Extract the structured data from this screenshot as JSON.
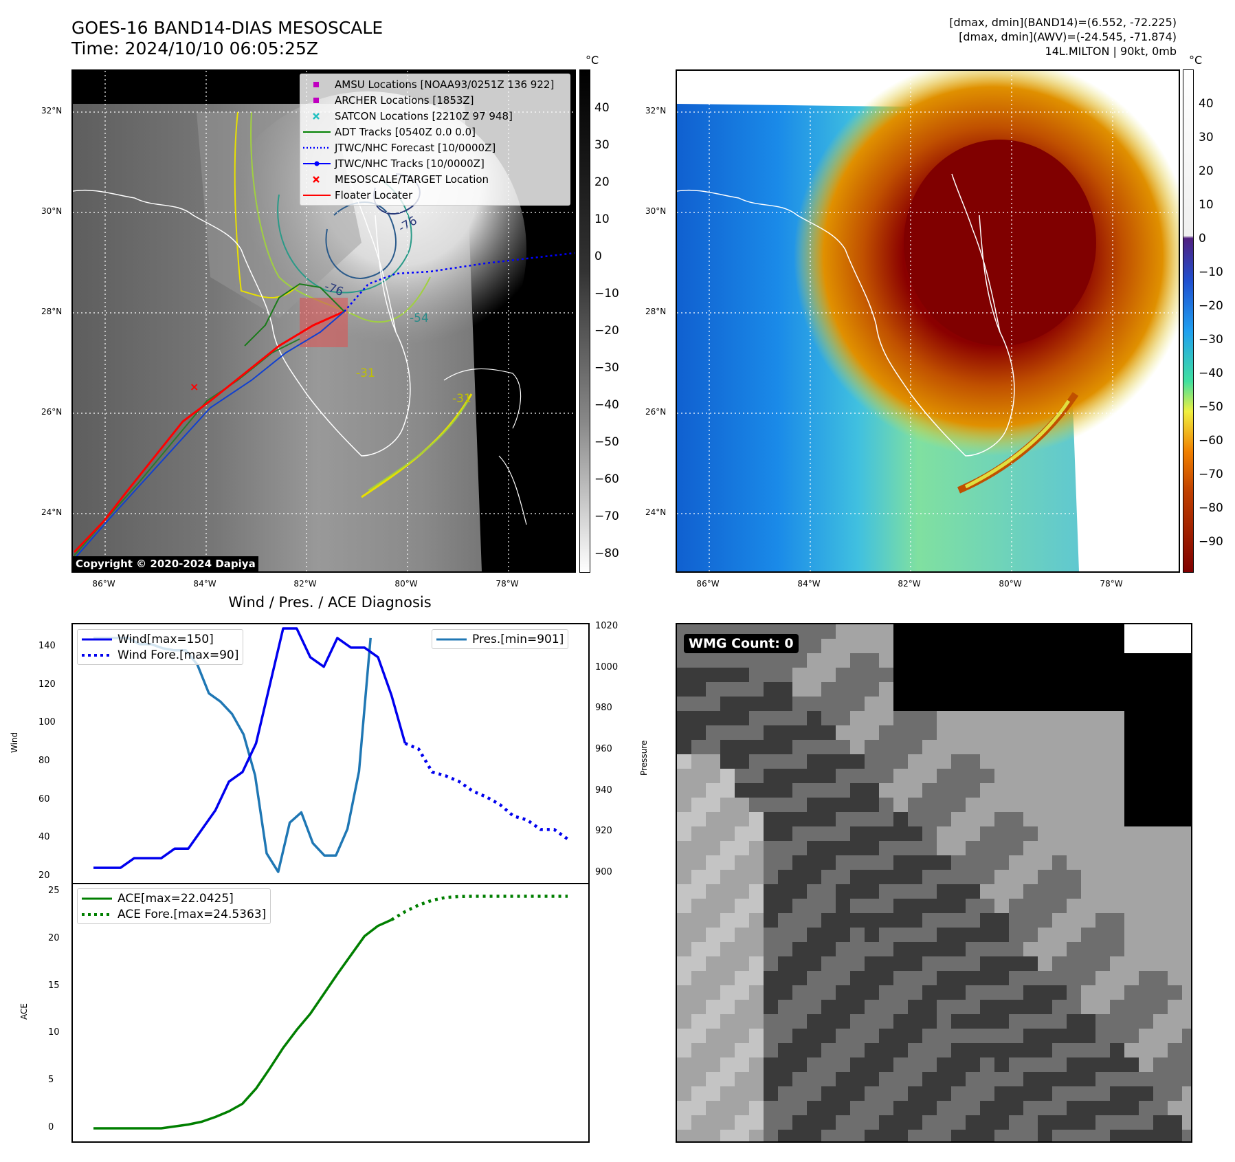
{
  "header": {
    "title_line1": "GOES-16 BAND14-DIAS MESOSCALE",
    "title_line2": "Time: 2024/10/10 06:05:25Z",
    "info_line1": "[dmax, dmin](BAND14)=(6.552, -72.225)",
    "info_line2": "[dmax, dmin](AWV)=(-24.545, -71.874)",
    "info_line3": "14L.MILTON | 90kt, 0mb"
  },
  "map": {
    "lat_labels": [
      "32°N",
      "30°N",
      "28°N",
      "26°N",
      "24°N"
    ],
    "lon_labels": [
      "86°W",
      "84°W",
      "82°W",
      "80°W",
      "78°W"
    ],
    "colorbar_unit": "°C",
    "bw_ticks": [
      "40",
      "30",
      "20",
      "10",
      "0",
      "−10",
      "−20",
      "−30",
      "−40",
      "−50",
      "−60",
      "−70",
      "−80"
    ],
    "color_ticks": [
      "40",
      "30",
      "20",
      "10",
      "0",
      "−10",
      "−20",
      "−30",
      "−40",
      "−50",
      "−60",
      "−70",
      "−80",
      "−90"
    ],
    "contour_labels": [
      "-76",
      "-76",
      "-54",
      "-31",
      "-31"
    ],
    "copyright": "Copyright © 2020-2024 Dapiya",
    "legend": [
      {
        "label": "AMSU Locations [NOAA93/0251Z 136 922]",
        "color": "#c000c0",
        "kind": "square"
      },
      {
        "label": "ARCHER Locations [1853Z]",
        "color": "#c000c0",
        "kind": "square"
      },
      {
        "label": "SATCON Locations [2210Z 97 948]",
        "color": "#20c0c0",
        "kind": "x"
      },
      {
        "label": "ADT Tracks [0540Z 0.0 0.0]",
        "color": "#008000",
        "kind": "line"
      },
      {
        "label": "JTWC/NHC Forecast [10/0000Z]",
        "color": "#0000ff",
        "kind": "dotted"
      },
      {
        "label": "JTWC/NHC Tracks [10/0000Z]",
        "color": "#0000ff",
        "kind": "linedot"
      },
      {
        "label": "MESOSCALE/TARGET Location",
        "color": "#ff0000",
        "kind": "x"
      },
      {
        "label": "Floater Locater",
        "color": "#ff0000",
        "kind": "line"
      }
    ]
  },
  "diagnosis": {
    "title": "Wind / Pres. / ACE Diagnosis",
    "wind_ylabel": "Wind",
    "pres_ylabel": "Pressure",
    "ace_ylabel": "ACE",
    "wind_ticks": [
      "140",
      "120",
      "100",
      "80",
      "60",
      "40",
      "20"
    ],
    "pres_ticks": [
      "1020",
      "1000",
      "980",
      "960",
      "940",
      "920",
      "900"
    ],
    "ace_ticks": [
      "25",
      "20",
      "15",
      "10",
      "5",
      "0"
    ],
    "legend_wind": "Wind[max=150]",
    "legend_wind_fore": "Wind Fore.[max=90]",
    "legend_pres": "Pres.[min=901]",
    "legend_ace": "ACE[max=22.0425]",
    "legend_ace_fore": "ACE Fore.[max=24.5363]",
    "colors": {
      "wind": "#0000ee",
      "pres": "#1f77b4",
      "ace": "#007f00"
    }
  },
  "chart_data": [
    {
      "type": "line",
      "ylabel": "Wind",
      "ylim": [
        20,
        150
      ],
      "series": [
        {
          "name": "Wind[max=150]",
          "values": [
            25,
            25,
            25,
            30,
            30,
            30,
            35,
            35,
            45,
            55,
            70,
            75,
            90,
            120,
            150,
            150,
            135,
            130,
            145,
            140,
            140,
            135,
            115,
            90
          ]
        },
        {
          "name": "Wind Fore.[max=90]",
          "values": [
            90,
            87,
            75,
            73,
            70,
            65,
            62,
            58,
            52,
            50,
            45,
            45,
            40
          ]
        }
      ]
    },
    {
      "type": "line",
      "ylabel": "Pressure",
      "ylim": [
        897,
        1021
      ],
      "series": [
        {
          "name": "Pres.[min=901]",
          "values": [
            1015,
            1015,
            1015,
            1015,
            1012,
            1012,
            1010,
            1009,
            1009,
            1002,
            988,
            984,
            978,
            968,
            948,
            910,
            901,
            925,
            930,
            915,
            909,
            909,
            922,
            950,
            1015
          ]
        }
      ]
    },
    {
      "type": "line",
      "ylabel": "ACE",
      "ylim": [
        0,
        25
      ],
      "series": [
        {
          "name": "ACE[max=22.0425]",
          "values": [
            0,
            0,
            0,
            0,
            0,
            0,
            0.2,
            0.4,
            0.7,
            1.2,
            1.8,
            2.6,
            4.2,
            6.3,
            8.5,
            10.4,
            12.1,
            14.2,
            16.3,
            18.3,
            20.3,
            21.4,
            22.04
          ]
        },
        {
          "name": "ACE Fore.[max=24.5363]",
          "values": [
            22.04,
            22.9,
            23.6,
            24.1,
            24.4,
            24.5,
            24.53,
            24.53,
            24.53,
            24.53,
            24.53,
            24.53,
            24.53,
            24.53
          ]
        }
      ]
    }
  ],
  "wmg": {
    "badge": "WMG Count: 0"
  }
}
